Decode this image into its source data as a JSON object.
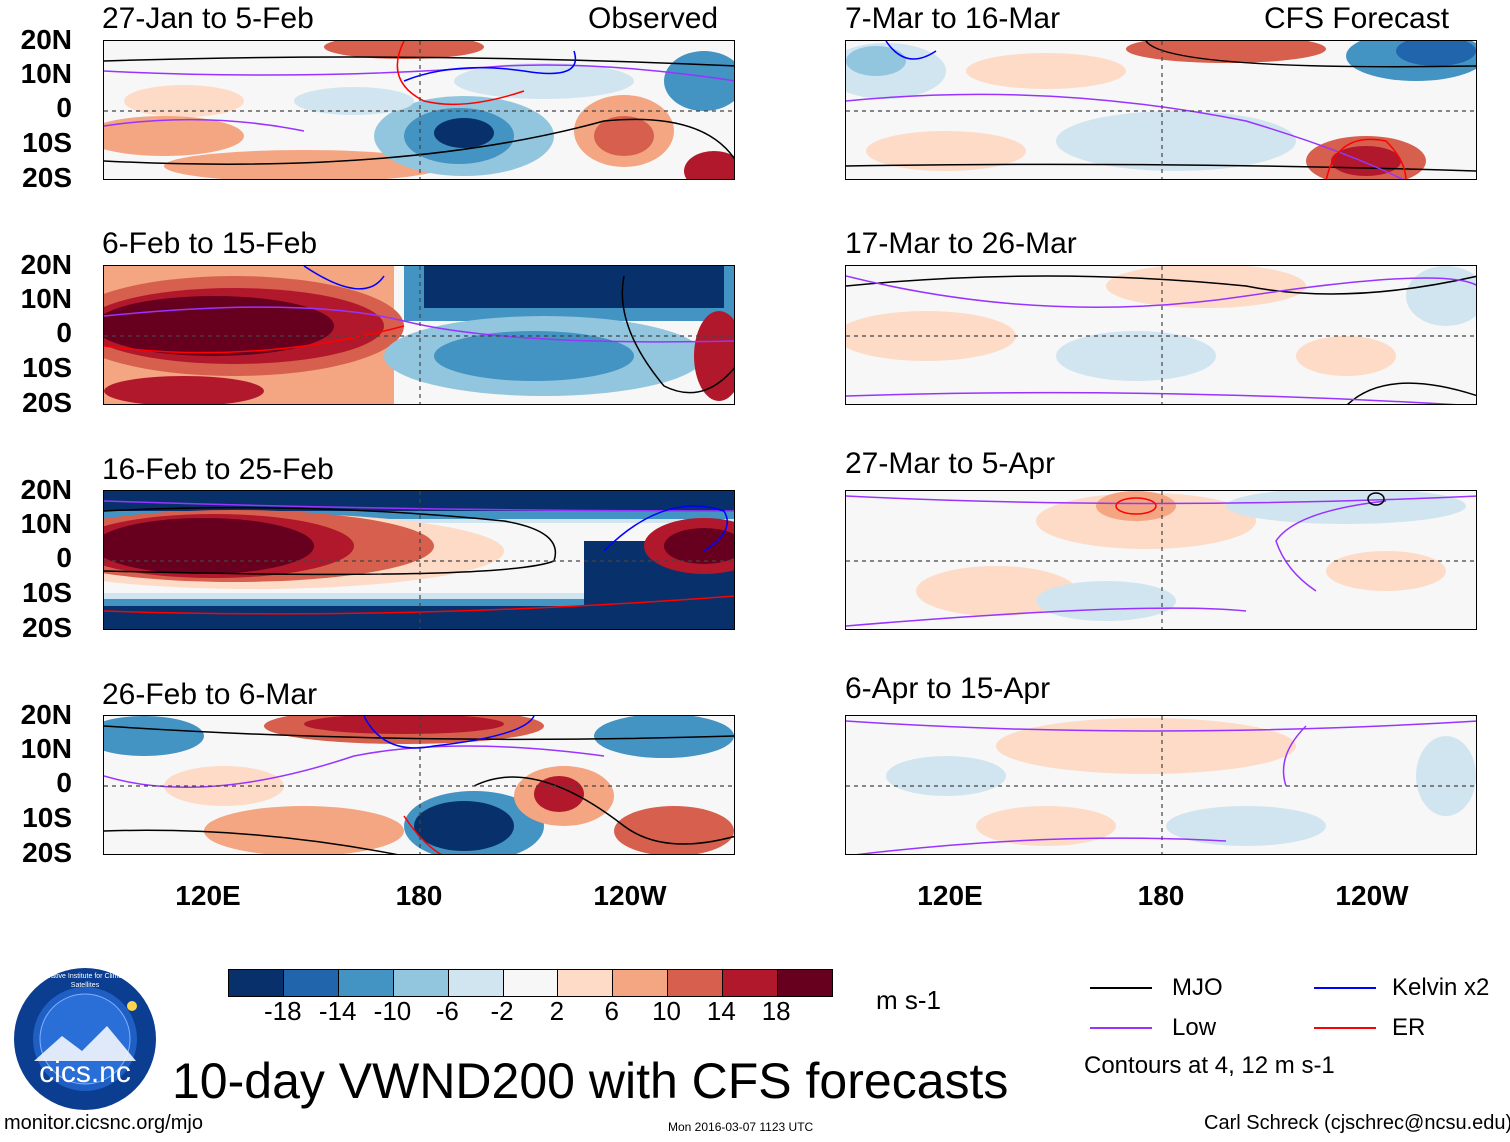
{
  "chart_data": {
    "type": "heatmap",
    "title": "10-day VWND200 with CFS forecasts",
    "variable": "VWND200",
    "units": "m s-1",
    "y_ticks": [
      "20N",
      "10N",
      "0",
      "10S",
      "20S"
    ],
    "x_ticks": [
      "120E",
      "180",
      "120W"
    ],
    "colorbar": {
      "labels": [
        "-18",
        "-14",
        "-10",
        "-6",
        "-2",
        "2",
        "6",
        "10",
        "14",
        "18"
      ],
      "colors": [
        "#08306b",
        "#2166ac",
        "#4393c3",
        "#92c5de",
        "#d1e5f0",
        "#f7f7f7",
        "#fddbc7",
        "#f4a582",
        "#d6604d",
        "#b2182b",
        "#67001f"
      ]
    },
    "observed_label": "Observed",
    "forecast_label": "CFS Forecast",
    "panels_left": [
      {
        "period": "27-Jan to 5-Feb"
      },
      {
        "period": "6-Feb to 15-Feb"
      },
      {
        "period": "16-Feb to 25-Feb"
      },
      {
        "period": "26-Feb to 6-Mar"
      }
    ],
    "panels_right": [
      {
        "period": "7-Mar to 16-Mar"
      },
      {
        "period": "17-Mar to 26-Mar"
      },
      {
        "period": "27-Mar to 5-Apr"
      },
      {
        "period": "6-Apr to 15-Apr"
      }
    ],
    "legend": [
      {
        "name": "MJO",
        "color": "#000000"
      },
      {
        "name": "Kelvin x2",
        "color": "#0000ff"
      },
      {
        "name": "Low",
        "color": "#9933ff"
      },
      {
        "name": "ER",
        "color": "#ff0000"
      }
    ],
    "contour_note": "Contours at 4, 12 m s-1"
  },
  "footer": {
    "url": "monitor.cicsnc.org/mjo",
    "timestamp": "Mon 2016-03-07 1123 UTC",
    "author": "Carl Schreck (cjschrec@ncsu.edu)",
    "logo_text": "cics.nc",
    "logo_ring_text": "Cooperative Institute for Climate and Satellites"
  }
}
